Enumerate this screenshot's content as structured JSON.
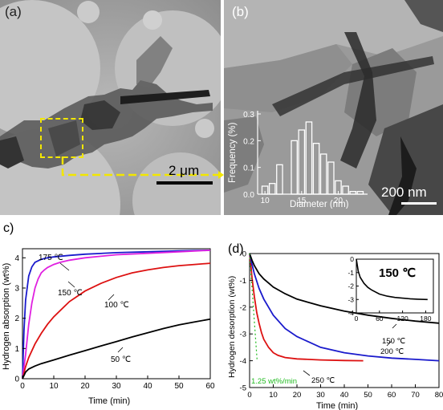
{
  "panels": {
    "a": {
      "label": "(a)",
      "scale_bar": "2 μm"
    },
    "b": {
      "label": "(b)",
      "scale_bar": "200 nm",
      "inset": {
        "type": "bar",
        "xlabel": "Diameter (nm)",
        "ylabel": "Frequency (%)",
        "xticks": [
          "10",
          "15",
          "20"
        ],
        "yticks": [
          "0.0",
          "0.1",
          "0.2",
          "0.3"
        ]
      }
    },
    "c": {
      "label": "c)"
    },
    "d": {
      "label": "(d)"
    }
  },
  "chart_data": [
    {
      "id": "diameter-histogram",
      "type": "bar",
      "xlabel": "Diameter (nm)",
      "ylabel": "Frequency (%)",
      "xlim": [
        9,
        24
      ],
      "ylim": [
        0,
        0.3
      ],
      "x": [
        10,
        11,
        12,
        13,
        14,
        15,
        16,
        17,
        18,
        19,
        20,
        21,
        22,
        23
      ],
      "values": [
        0.03,
        0.04,
        0.11,
        0.0,
        0.2,
        0.24,
        0.27,
        0.19,
        0.15,
        0.12,
        0.05,
        0.03,
        0.01,
        0.01
      ],
      "edge_color": "#ffffff"
    },
    {
      "id": "hydrogen-absorption",
      "type": "line",
      "xlabel": "Time (min)",
      "ylabel": "Hydrogen absorption (wt%)",
      "xlim": [
        0,
        60
      ],
      "ylim": [
        0,
        4.3
      ],
      "xticks": [
        "0",
        "10",
        "20",
        "30",
        "40",
        "50",
        "60"
      ],
      "yticks": [
        "0",
        "1",
        "2",
        "3",
        "4"
      ],
      "series": [
        {
          "name": "175 ℃",
          "color": "#1a1acc",
          "x": [
            0,
            0.5,
            1,
            2,
            3,
            4,
            5,
            6,
            8,
            10,
            15,
            20,
            30,
            40,
            50,
            60
          ],
          "y": [
            0,
            1.6,
            2.6,
            3.4,
            3.7,
            3.85,
            3.9,
            3.95,
            4.0,
            4.03,
            4.08,
            4.12,
            4.17,
            4.2,
            4.23,
            4.25
          ]
        },
        {
          "name": "150 ℃",
          "color": "#e020e0",
          "x": [
            0,
            1,
            2,
            3,
            4,
            5,
            6,
            7,
            8,
            10,
            12,
            15,
            20,
            30,
            40,
            50,
            60
          ],
          "y": [
            0,
            0.8,
            1.8,
            2.5,
            3.0,
            3.3,
            3.5,
            3.6,
            3.68,
            3.78,
            3.85,
            3.92,
            4.0,
            4.1,
            4.15,
            4.2,
            4.25
          ]
        },
        {
          "name": "100 ℃",
          "color": "#dd1111",
          "x": [
            0,
            1,
            2,
            4,
            6,
            8,
            10,
            15,
            20,
            25,
            30,
            35,
            40,
            45,
            50,
            55,
            60
          ],
          "y": [
            0,
            0.4,
            0.7,
            1.15,
            1.5,
            1.8,
            2.05,
            2.55,
            2.9,
            3.15,
            3.35,
            3.5,
            3.6,
            3.68,
            3.74,
            3.78,
            3.82
          ]
        },
        {
          "name": "50 ℃",
          "color": "#000000",
          "x": [
            0,
            1,
            2,
            4,
            6,
            10,
            15,
            20,
            25,
            30,
            35,
            40,
            45,
            50,
            55,
            60
          ],
          "y": [
            0,
            0.22,
            0.32,
            0.42,
            0.5,
            0.62,
            0.78,
            0.93,
            1.08,
            1.23,
            1.38,
            1.52,
            1.66,
            1.78,
            1.88,
            1.97
          ]
        }
      ],
      "annotations": [
        "175 ℃",
        "150 ℃",
        "100 ℃",
        "50 ℃"
      ]
    },
    {
      "id": "hydrogen-desorption",
      "type": "line",
      "xlabel": "Time (min)",
      "ylabel": "Hydrogen desorption (wt%)",
      "xlim": [
        0,
        80
      ],
      "ylim": [
        -5,
        0
      ],
      "xticks": [
        "0",
        "10",
        "20",
        "30",
        "40",
        "50",
        "60",
        "70",
        "80"
      ],
      "yticks": [
        "0",
        "-1",
        "-2",
        "-3",
        "-4",
        "-5"
      ],
      "series": [
        {
          "name": "250 ℃",
          "color": "#dd1111",
          "x": [
            0,
            0.5,
            1,
            2,
            3,
            4,
            5,
            6,
            8,
            10,
            12,
            15,
            20,
            30,
            40,
            48
          ],
          "y": [
            0,
            -0.4,
            -0.9,
            -1.6,
            -2.2,
            -2.6,
            -2.95,
            -3.2,
            -3.5,
            -3.7,
            -3.8,
            -3.88,
            -3.93,
            -3.97,
            -3.99,
            -4.0
          ]
        },
        {
          "name": "200 ℃",
          "color": "#1a1acc",
          "x": [
            0,
            1,
            2,
            4,
            6,
            8,
            10,
            15,
            20,
            25,
            30,
            40,
            50,
            60,
            70,
            80
          ],
          "y": [
            0,
            -0.4,
            -0.75,
            -1.3,
            -1.7,
            -2.0,
            -2.3,
            -2.8,
            -3.1,
            -3.3,
            -3.5,
            -3.7,
            -3.82,
            -3.9,
            -3.95,
            -4.0
          ]
        },
        {
          "name": "150 ℃",
          "color": "#000000",
          "x": [
            0,
            1,
            2,
            4,
            6,
            8,
            10,
            15,
            20,
            30,
            40,
            50,
            60,
            70,
            80
          ],
          "y": [
            0,
            -0.25,
            -0.45,
            -0.75,
            -0.95,
            -1.1,
            -1.25,
            -1.5,
            -1.7,
            -1.95,
            -2.15,
            -2.3,
            -2.42,
            -2.52,
            -2.6
          ]
        },
        {
          "name": "1.25 wt%/min",
          "color": "#22bb22",
          "dashed": true,
          "x": [
            0,
            3.2
          ],
          "y": [
            0,
            -4.0
          ]
        }
      ],
      "annotations": [
        "250 ℃",
        "200 ℃",
        "150 ℃",
        "1.25 wt%/min"
      ],
      "inset": {
        "title": "150 ℃",
        "xlim": [
          0,
          200
        ],
        "ylim": [
          -4,
          0
        ],
        "xticks": [
          "0",
          "60",
          "120",
          "180"
        ],
        "yticks": [
          "0",
          "-1",
          "-2",
          "-3",
          "-4"
        ],
        "series": [
          {
            "name": "150 ℃",
            "color": "#000000",
            "x": [
              0,
              5,
              10,
              20,
              30,
              40,
              60,
              80,
              100,
              120,
              140,
              160,
              185
            ],
            "y": [
              0,
              -0.9,
              -1.35,
              -1.8,
              -2.1,
              -2.3,
              -2.6,
              -2.75,
              -2.85,
              -2.9,
              -2.95,
              -2.98,
              -3.0
            ]
          }
        ]
      }
    }
  ]
}
